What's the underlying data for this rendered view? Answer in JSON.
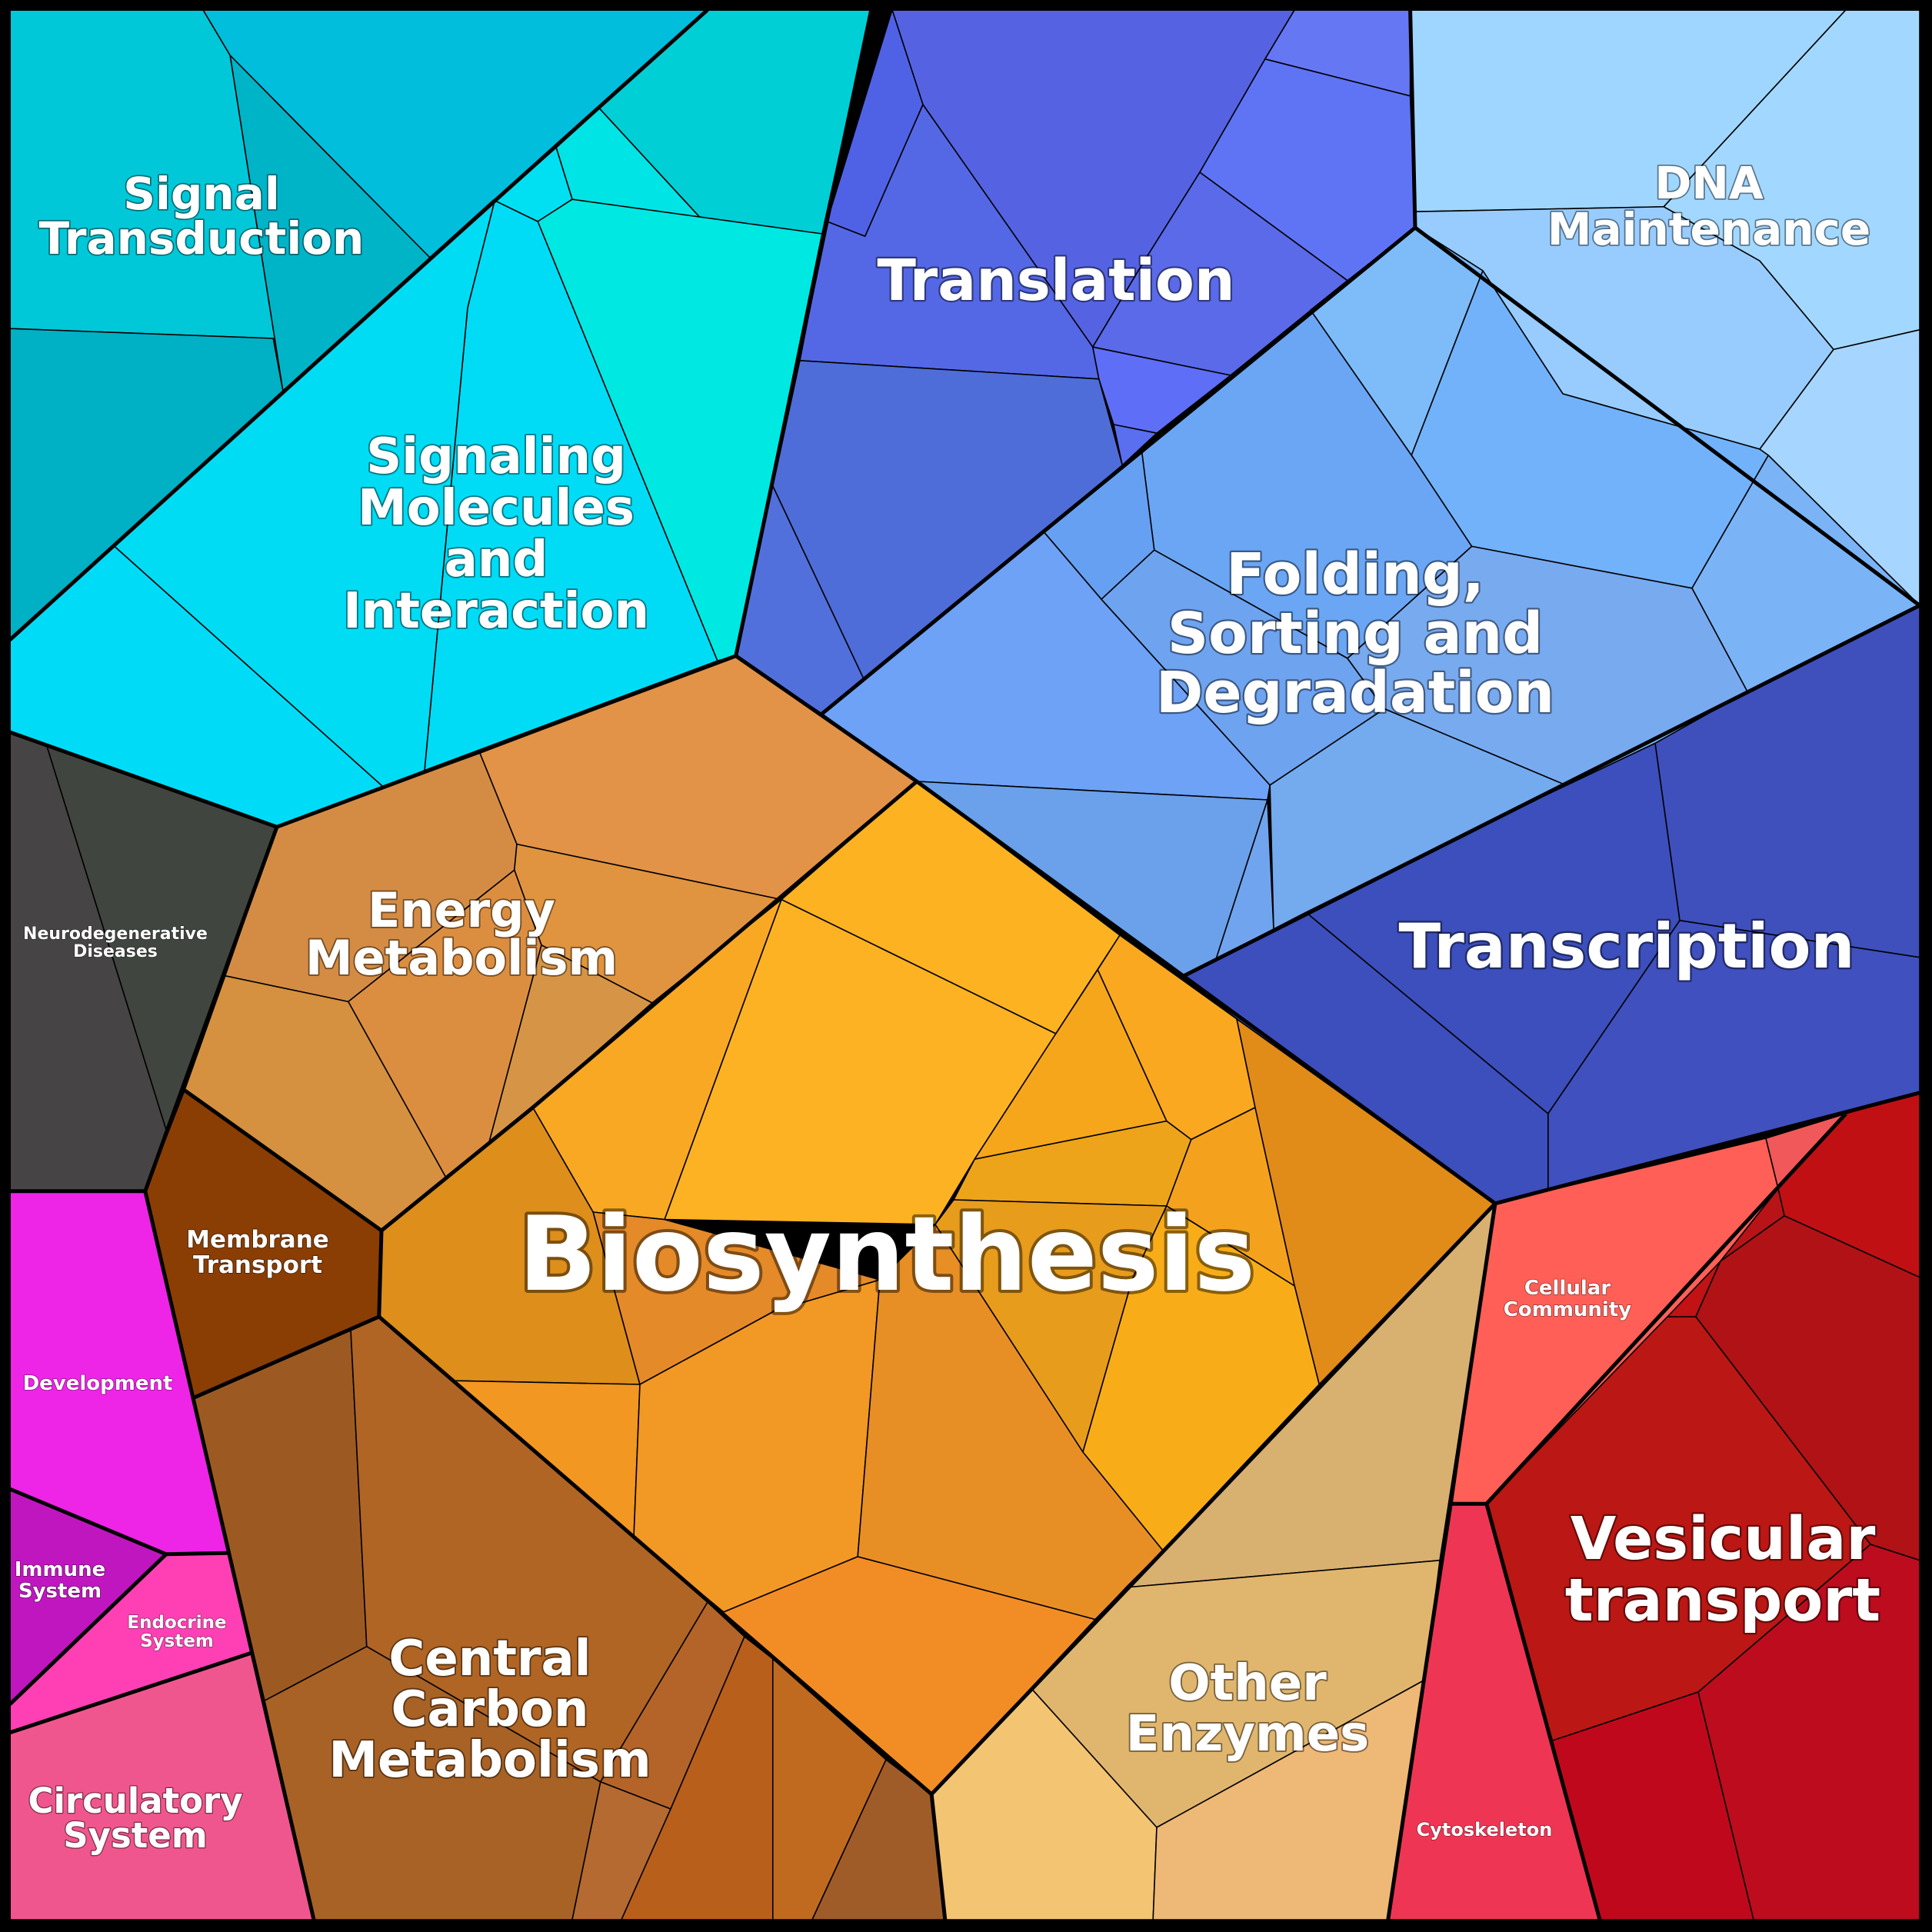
{
  "regions": [
    {
      "id": "signal-transduction",
      "lines": [
        "Signal",
        "Transduction"
      ],
      "color": "#00bed4"
    },
    {
      "id": "signaling-molecules",
      "lines": [
        "Signaling",
        "Molecules",
        "and",
        "Interaction"
      ],
      "color": "#00dcf6"
    },
    {
      "id": "translation",
      "lines": [
        "Translation"
      ],
      "color": "#5563e3"
    },
    {
      "id": "dna-maintenance",
      "lines": [
        "DNA",
        "Maintenance"
      ],
      "color": "#9fd6ff"
    },
    {
      "id": "folding-sorting",
      "lines": [
        "Folding,",
        "Sorting and",
        "Degradation"
      ],
      "color": "#6da2f6"
    },
    {
      "id": "transcription",
      "lines": [
        "Transcription"
      ],
      "color": "#3f50bd"
    },
    {
      "id": "neurodegenerative",
      "lines": [
        "Neurodegenerative",
        "Diseases"
      ],
      "color": "#444444"
    },
    {
      "id": "energy-metabolism",
      "lines": [
        "Energy",
        "Metabolism"
      ],
      "color": "#dc9448"
    },
    {
      "id": "biosynthesis",
      "lines": [
        "Biosynthesis"
      ],
      "color": "#f5a623"
    },
    {
      "id": "membrane-transport",
      "lines": [
        "Membrane",
        "Transport"
      ],
      "color": "#8a3e04"
    },
    {
      "id": "development",
      "lines": [
        "Development"
      ],
      "color": "#ee24e6"
    },
    {
      "id": "immune-system",
      "lines": [
        "Immune",
        "System"
      ],
      "color": "#c016c0"
    },
    {
      "id": "endocrine-system",
      "lines": [
        "Endocrine",
        "System"
      ],
      "color": "#fe40b4"
    },
    {
      "id": "circulatory-system",
      "lines": [
        "Circulatory",
        "System"
      ],
      "color": "#f0568e"
    },
    {
      "id": "central-carbon",
      "lines": [
        "Central",
        "Carbon",
        "Metabolism"
      ],
      "color": "#aa6226"
    },
    {
      "id": "other-enzymes",
      "lines": [
        "Other",
        "Enzymes"
      ],
      "color": "#e2b872"
    },
    {
      "id": "cellular-community",
      "lines": [
        "Cellular",
        "Community"
      ],
      "color": "#ff5d58"
    },
    {
      "id": "vesicular-transport",
      "lines": [
        "Vesicular",
        "transport"
      ],
      "color": "#bb1714"
    },
    {
      "id": "cytoskeleton",
      "lines": [
        "Cytoskeleton"
      ],
      "color": "#ef3554"
    }
  ]
}
